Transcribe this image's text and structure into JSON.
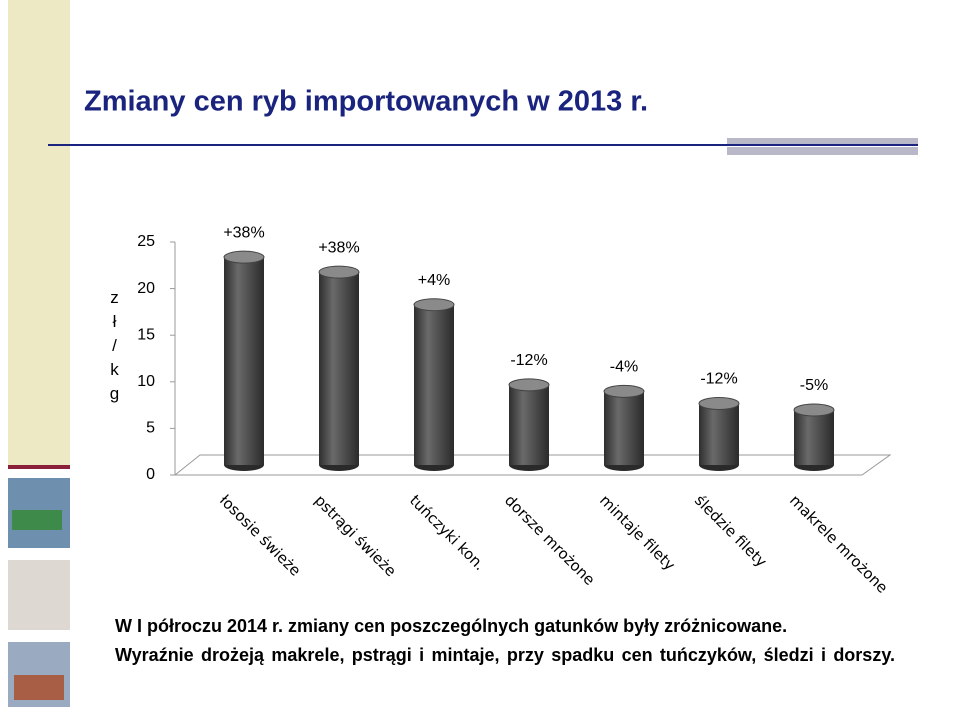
{
  "chart_data": {
    "type": "bar3d",
    "title": "Zmiany cen ryb importowanych w 2013 r.",
    "y_label": "zł/kg",
    "categories": [
      "łososie świeże",
      "pstrągi świeże",
      "tuńczyki kon.",
      "dorsze mrożone",
      "mintaje filety",
      "śledzie filety",
      "makrele mrożone"
    ],
    "values": [
      22.3,
      20.7,
      17.2,
      8.6,
      7.9,
      6.6,
      5.9
    ],
    "annotations": [
      "+38%",
      "+38%",
      "+4%",
      "-12%",
      "-4%",
      "-12%",
      "-5%"
    ],
    "color": "#4a4a4a",
    "ylim": [
      0,
      25
    ],
    "yticks": [
      0,
      5,
      10,
      15,
      20,
      25
    ],
    "grid": false
  },
  "body": [
    "W I półroczu 2014 r. zmiany cen poszczególnych gatunków były zróżnicowane.",
    "Wyraźnie drożeją makrele, pstrągi i mintaje, przy spadku cen tuńczyków, śledzi i dorszy."
  ]
}
